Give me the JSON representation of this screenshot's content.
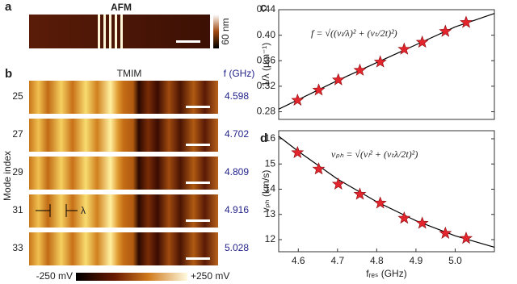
{
  "panels": {
    "a": {
      "label": "a",
      "title": "AFM",
      "colorbar_label": "60 nm"
    },
    "b": {
      "label": "b",
      "title": "TMIM",
      "f_header": "f (GHz)",
      "y_label": "Mode index",
      "annotation": "λ",
      "rows": [
        {
          "mode": "25",
          "f": "4.598"
        },
        {
          "mode": "27",
          "f": "4.702"
        },
        {
          "mode": "29",
          "f": "4.809"
        },
        {
          "mode": "31",
          "f": "4.916"
        },
        {
          "mode": "33",
          "f": "5.028"
        }
      ],
      "colorbar_min": "-250 mV",
      "colorbar_max": "+250 mV"
    }
  },
  "chart_data": [
    {
      "type": "scatter",
      "label": "c",
      "formula": "f = √((vₗ/λ)² + (vₜ/2t)²)",
      "y_label": "1/λ (μm⁻¹)",
      "xlim": [
        4.55,
        5.1
      ],
      "ylim": [
        0.268,
        0.44
      ],
      "yticks": [
        0.28,
        0.32,
        0.36,
        {
          "value": 0.4,
          "label": "0.40"
        },
        0.44
      ],
      "series": [
        {
          "marker": "star",
          "color": "#e3262d",
          "x": [
            4.598,
            4.652,
            4.702,
            4.757,
            4.809,
            4.87,
            4.916,
            4.975,
            5.028
          ],
          "values": [
            0.298,
            0.314,
            0.33,
            0.345,
            0.358,
            0.378,
            0.389,
            0.406,
            0.42
          ]
        },
        {
          "marker": "line",
          "color": "#000000",
          "x": [
            4.55,
            4.6,
            4.7,
            4.8,
            4.9,
            5.0,
            5.1
          ],
          "values": [
            0.284,
            0.299,
            0.329,
            0.357,
            0.385,
            0.413,
            0.434
          ]
        }
      ]
    },
    {
      "type": "scatter",
      "label": "d",
      "formula": "vₚₕ = √(vₗ² + (vₜλ/2t)²)",
      "y_label": "vₚₕ (km/s)",
      "x_label": "fᵣₑₛ (GHz)",
      "xlim": [
        4.55,
        5.1
      ],
      "ylim": [
        11.52,
        16.32
      ],
      "xticks": [
        4.6,
        4.7,
        4.8,
        4.9,
        {
          "value": 5,
          "label": "5.0"
        }
      ],
      "yticks": [
        12,
        13,
        14,
        15,
        16
      ],
      "series": [
        {
          "marker": "star",
          "color": "#e3262d",
          "x": [
            4.598,
            4.652,
            4.702,
            4.757,
            4.809,
            4.87,
            4.916,
            4.975,
            5.028
          ],
          "values": [
            15.45,
            14.8,
            14.2,
            13.8,
            13.45,
            12.85,
            12.65,
            12.25,
            12.05
          ]
        },
        {
          "marker": "line",
          "color": "#000000",
          "x": [
            4.55,
            4.6,
            4.7,
            4.8,
            4.9,
            5.0,
            5.1
          ],
          "values": [
            16.1,
            15.5,
            14.4,
            13.5,
            12.75,
            12.15,
            11.7
          ]
        }
      ]
    }
  ]
}
